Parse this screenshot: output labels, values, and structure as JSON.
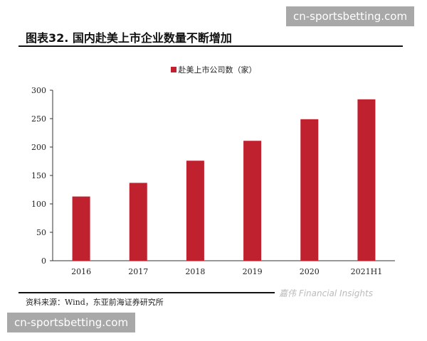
{
  "header": {
    "title": "图表32. 国内赴美上市企业数量不断增加"
  },
  "footer": {
    "source": "资料来源：Wind，东亚前海证券研究所",
    "wechat_mark": "嘉伟 Financial Insights"
  },
  "watermarks": {
    "top": "cn-sportsbetting.com",
    "bottom": "cn-sportsbetting.com"
  },
  "chart_data": {
    "type": "bar",
    "categories": [
      "2016",
      "2017",
      "2018",
      "2019",
      "2020",
      "2021H1"
    ],
    "series": [
      {
        "name": "赴美上市公司数（家）",
        "values": [
          113,
          137,
          176,
          211,
          249,
          284
        ],
        "color": "#c0212f"
      }
    ],
    "ylim": [
      0,
      300
    ],
    "yticks": [
      0,
      50,
      100,
      150,
      200,
      250,
      300
    ],
    "grid": false,
    "legend": "top-center"
  }
}
